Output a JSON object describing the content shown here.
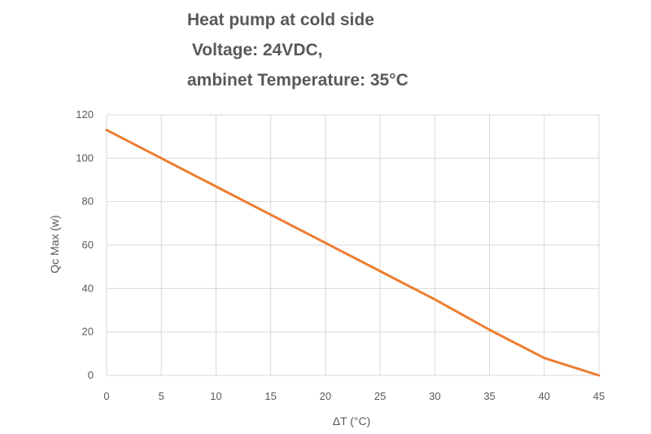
{
  "chart_data": {
    "type": "line",
    "title_lines": [
      "Heat pump at cold side",
      " Voltage: 24VDC,",
      "ambinet Temperature: 35°C"
    ],
    "xlabel": "ΔT (°C)",
    "ylabel": "Qc Max (w)",
    "x_ticks": [
      0,
      5,
      10,
      15,
      20,
      25,
      30,
      35,
      40,
      45
    ],
    "y_ticks": [
      0,
      20,
      40,
      60,
      80,
      100,
      120
    ],
    "xlim": [
      0,
      45
    ],
    "ylim": [
      0,
      120
    ],
    "grid": true,
    "legend": "none",
    "series": [
      {
        "color": "#ed7d31",
        "x": [
          0,
          5,
          10,
          15,
          20,
          25,
          30,
          35,
          40,
          45
        ],
        "y": [
          113,
          100,
          87,
          74,
          61,
          48,
          35,
          21,
          8,
          0
        ]
      }
    ]
  }
}
